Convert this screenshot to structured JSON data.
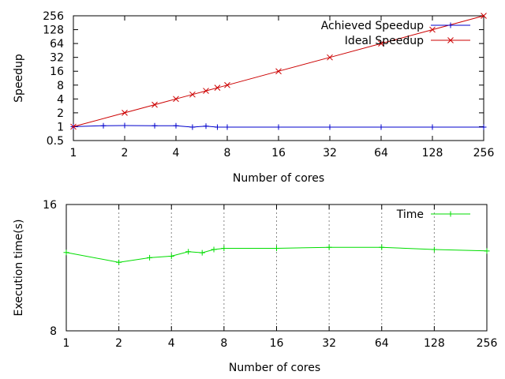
{
  "chart_data": [
    {
      "type": "line",
      "ylabel": "Speedup",
      "xlabel": "Number of cores",
      "xscale": "log2",
      "yscale": "log2",
      "xlim": [
        1,
        256
      ],
      "ylim": [
        0.5,
        256
      ],
      "x_ticks": [
        "1",
        "2",
        "4",
        "8",
        "16",
        "32",
        "64",
        "128",
        "256"
      ],
      "y_ticks": [
        "0.5",
        "1",
        "2",
        "4",
        "8",
        "16",
        "32",
        "64",
        "128",
        "256"
      ],
      "grid": false,
      "legend_position": "top-right",
      "series": [
        {
          "name": "Achieved Speedup",
          "color": "#0000cc",
          "x": [
            1,
            1.5,
            2,
            3,
            4,
            5,
            6,
            7,
            8,
            16,
            32,
            64,
            128,
            256
          ],
          "values": [
            1.0,
            1.05,
            1.06,
            1.05,
            1.05,
            0.98,
            1.03,
            0.98,
            0.98,
            0.98,
            0.98,
            0.98,
            0.98,
            0.98
          ]
        },
        {
          "name": "Ideal Speedup",
          "color": "#cc0000",
          "x": [
            1,
            2,
            3,
            4,
            5,
            6,
            7,
            8,
            16,
            32,
            64,
            128,
            256
          ],
          "values": [
            1,
            2,
            3,
            4,
            5,
            6,
            7,
            8,
            16,
            32,
            64,
            128,
            256
          ]
        }
      ]
    },
    {
      "type": "line",
      "ylabel": "Execution time(s)",
      "xlabel": "Number of cores",
      "xscale": "log2",
      "yscale": "log2",
      "xlim": [
        1,
        256
      ],
      "ylim": [
        8,
        16
      ],
      "x_ticks": [
        "1",
        "2",
        "4",
        "8",
        "16",
        "32",
        "64",
        "128",
        "256"
      ],
      "y_ticks": [
        "8",
        "16"
      ],
      "grid": true,
      "legend_position": "top-right",
      "series": [
        {
          "name": "Time",
          "color": "#00dd00",
          "x": [
            1,
            2,
            3,
            4,
            5,
            6,
            7,
            8,
            16,
            32,
            64,
            128,
            256
          ],
          "values": [
            12.3,
            11.65,
            11.95,
            12.05,
            12.35,
            12.28,
            12.5,
            12.58,
            12.58,
            12.65,
            12.65,
            12.5,
            12.4
          ]
        }
      ]
    }
  ]
}
